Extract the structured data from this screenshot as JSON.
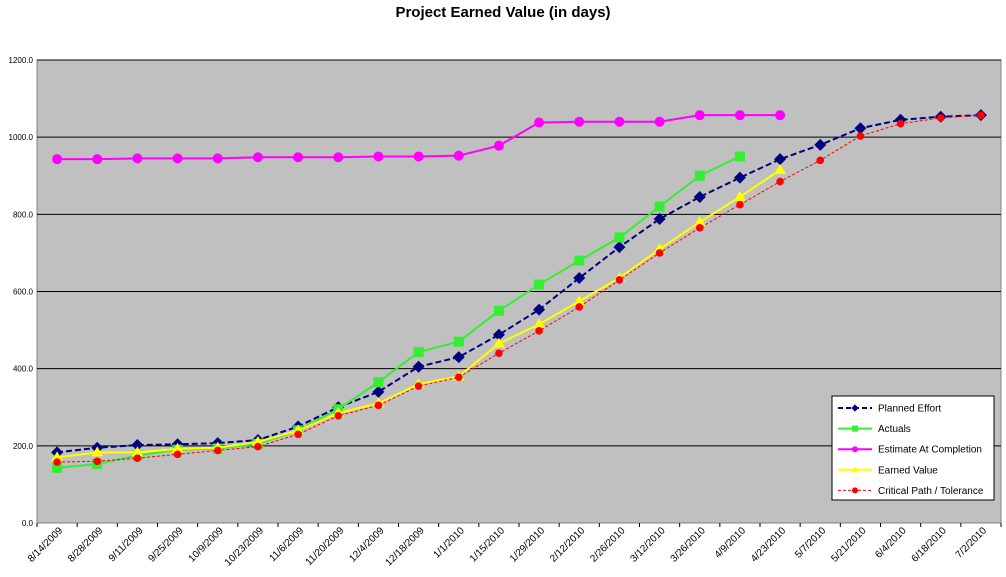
{
  "chart_data": {
    "type": "line",
    "title": "Project Earned Value (in days)",
    "xlabel": "",
    "ylabel": "",
    "ylim": [
      0,
      1200
    ],
    "yticks": [
      "0.0",
      "200.0",
      "400.0",
      "600.0",
      "800.0",
      "1000.0",
      "1200.0"
    ],
    "grid": "horizontal",
    "legend_position": "bottom-right",
    "categories": [
      "8/14/2009",
      "8/28/2009",
      "9/11/2009",
      "9/25/2009",
      "10/9/2009",
      "10/23/2009",
      "11/6/2009",
      "11/20/2009",
      "12/4/2009",
      "12/18/2009",
      "1/1/2010",
      "1/15/2010",
      "1/29/2010",
      "2/12/2010",
      "2/26/2010",
      "3/12/2010",
      "3/26/2010",
      "4/9/2010",
      "4/23/2010",
      "5/7/2010",
      "5/21/2010",
      "6/4/2010",
      "6/18/2010",
      "7/2/2010"
    ],
    "series": [
      {
        "name": "Planned Effort",
        "color": "#000080",
        "marker": "diamond",
        "dash": true,
        "values": [
          183,
          195,
          202,
          204,
          207,
          215,
          250,
          300,
          340,
          405,
          430,
          488,
          553,
          635,
          715,
          788,
          845,
          895,
          943,
          980,
          1023,
          1045,
          1053,
          1057
        ]
      },
      {
        "name": "Actuals",
        "color": "#33ee33",
        "marker": "square",
        "dash": false,
        "values": [
          143,
          153,
          175,
          190,
          193,
          205,
          240,
          295,
          365,
          443,
          470,
          550,
          618,
          680,
          740,
          820,
          900,
          950,
          null,
          null,
          null,
          null,
          null,
          null
        ]
      },
      {
        "name": "Estimate At Completion",
        "color": "#ff00ff",
        "marker": "circle",
        "dash": false,
        "values": [
          943,
          943,
          945,
          945,
          945,
          948,
          948,
          948,
          950,
          950,
          952,
          978,
          1038,
          1040,
          1040,
          1040,
          1057,
          1057,
          1057,
          null,
          null,
          null,
          null,
          null
        ]
      },
      {
        "name": "Earned Value",
        "color": "#ffff00",
        "marker": "triangle",
        "dash": false,
        "values": [
          170,
          183,
          183,
          192,
          195,
          210,
          240,
          285,
          310,
          360,
          380,
          465,
          515,
          575,
          635,
          710,
          780,
          845,
          915,
          null,
          null,
          null,
          null,
          null
        ]
      },
      {
        "name": "Critical Path / Tolerance",
        "color": "#ff0000",
        "marker": "dot",
        "dash": true,
        "values": [
          158,
          160,
          168,
          178,
          188,
          198,
          230,
          278,
          305,
          355,
          378,
          440,
          498,
          560,
          630,
          700,
          765,
          825,
          885,
          940,
          1003,
          1035,
          1050,
          1057
        ]
      }
    ]
  }
}
